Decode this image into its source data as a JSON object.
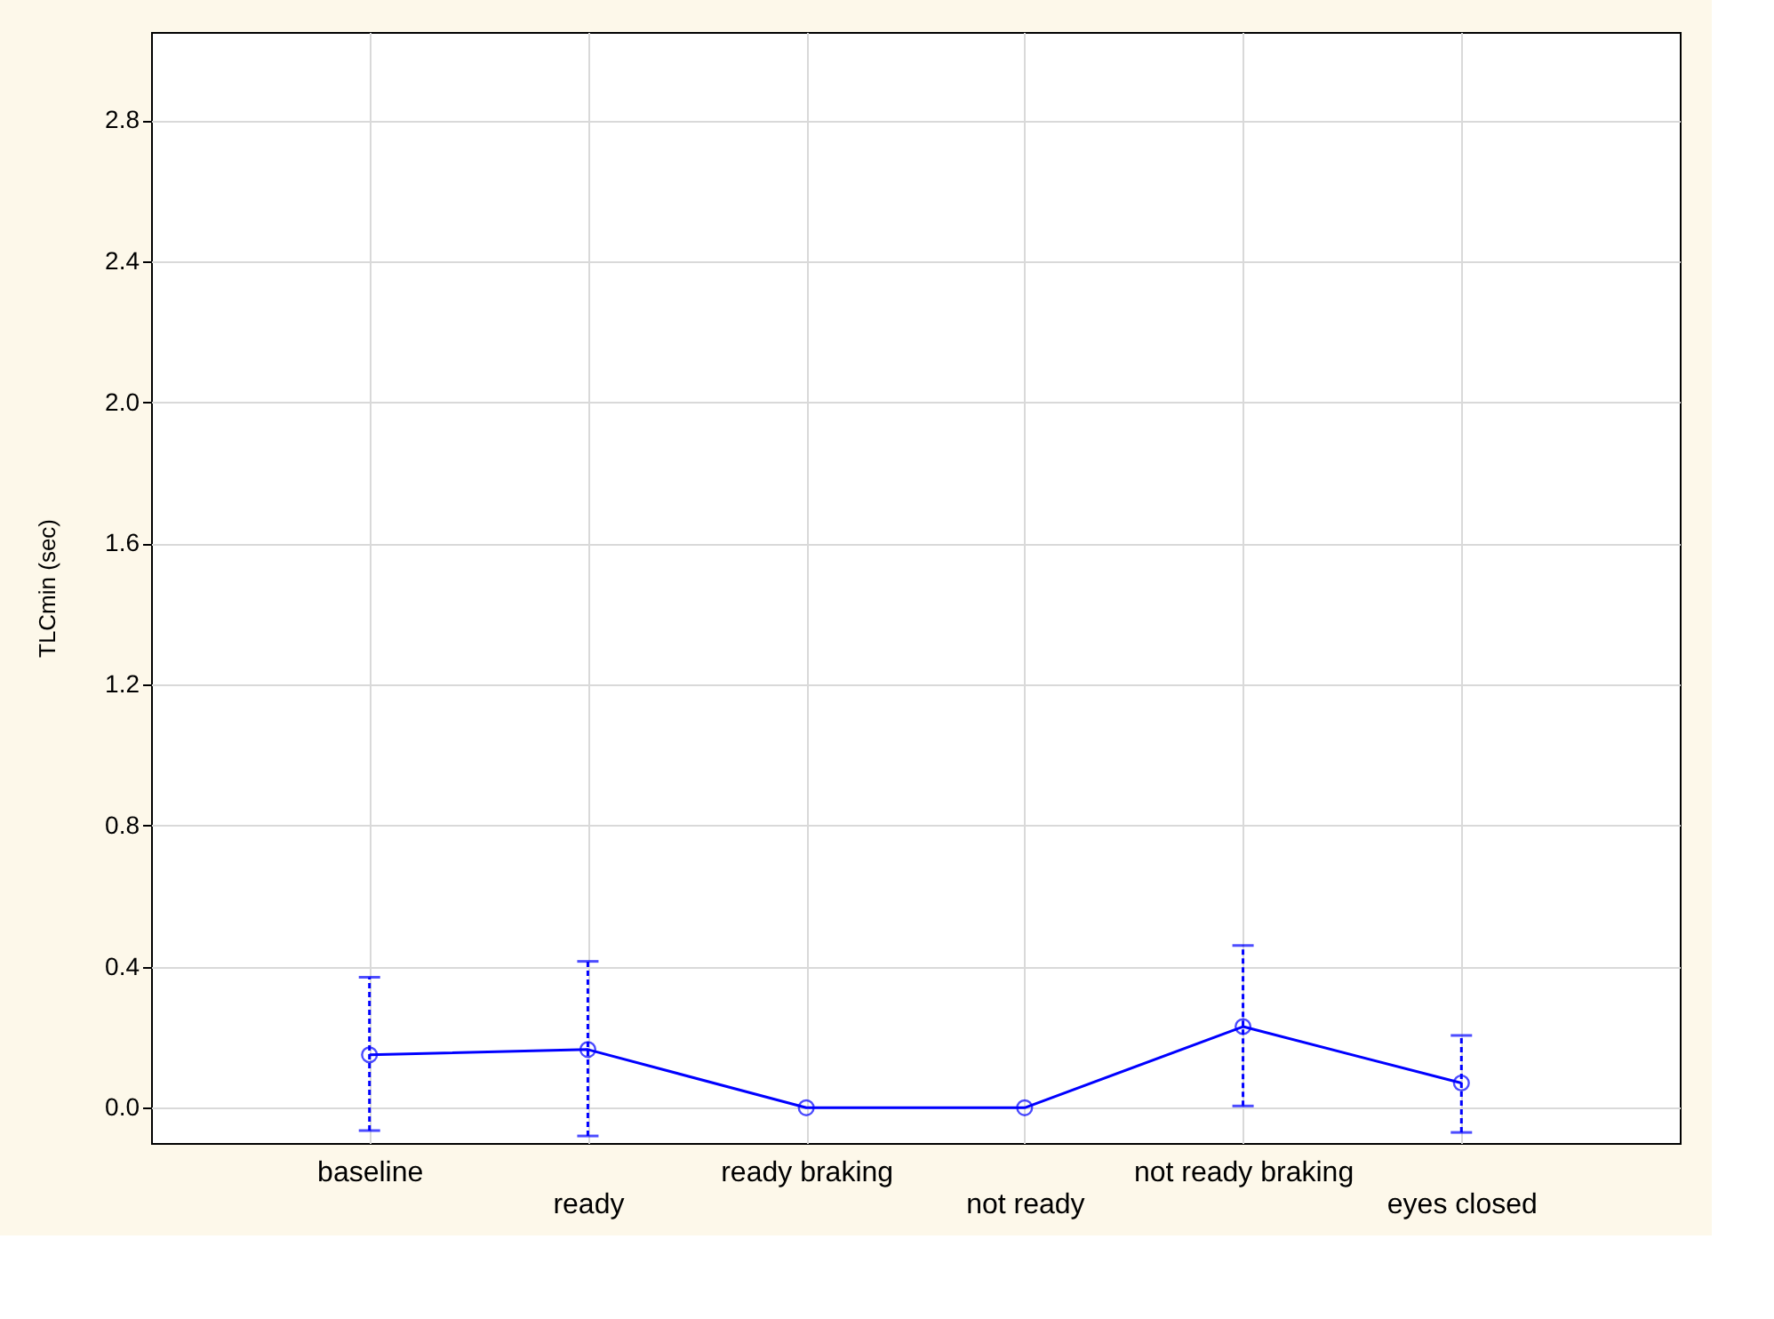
{
  "chart_data": {
    "type": "line",
    "ylabel": "TLCmin (sec)",
    "categories": [
      "baseline",
      "ready",
      "ready braking",
      "not ready",
      "not ready braking",
      "eyes closed"
    ],
    "series": [
      {
        "color": "#0000ff",
        "values": [
          0.15,
          0.165,
          0.0,
          0.0,
          0.23,
          0.07
        ],
        "errors": [
          [
            -0.065,
            0.37
          ],
          [
            -0.08,
            0.415
          ],
          null,
          null,
          [
            0.005,
            0.46
          ],
          [
            -0.07,
            0.205
          ]
        ]
      }
    ],
    "ylim": [
      -0.1,
      3.05
    ],
    "yticks": [
      {
        "value": 0.0,
        "label": "0.0"
      },
      0.4,
      0.8,
      1.2,
      1.6,
      {
        "value": 2.0,
        "label": "2.0"
      },
      2.4,
      2.8
    ],
    "grid": true,
    "marker": "circle",
    "line_style": "solid"
  }
}
